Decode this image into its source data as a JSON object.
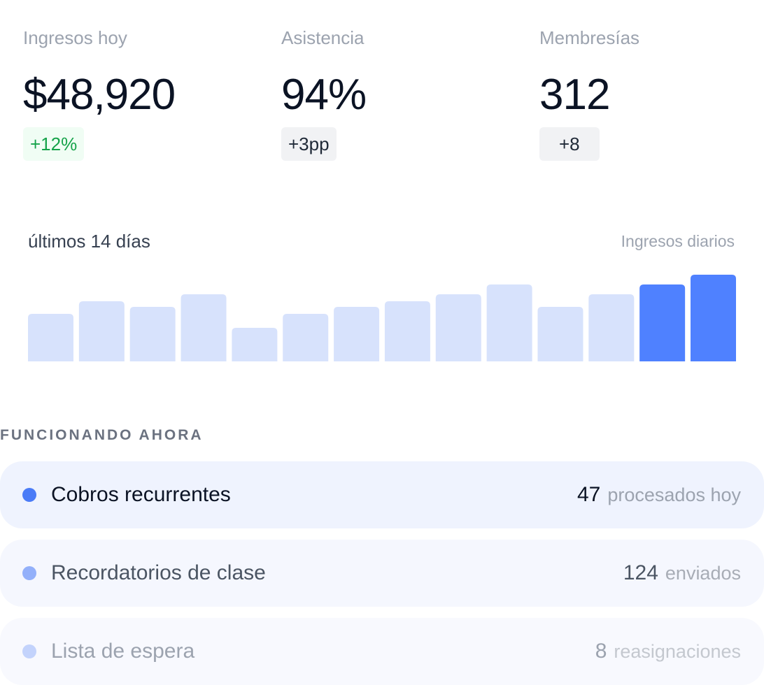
{
  "kpis": [
    {
      "label": "Ingresos hoy",
      "value": "$48,920",
      "delta": "+12%",
      "delta_tone": "up"
    },
    {
      "label": "Asistencia",
      "value": "94%",
      "delta": "+3pp",
      "delta_tone": "neutral"
    },
    {
      "label": "Membresías",
      "value": "312",
      "delta": "+8",
      "delta_tone": "neutral"
    }
  ],
  "chart": {
    "title": "últimos 14 días",
    "subtitle": "Ingresos diarios"
  },
  "chart_data": {
    "type": "bar",
    "title": "últimos 14 días",
    "subtitle": "Ingresos diarios",
    "categories": [
      "",
      "",
      "",
      "",
      "",
      "",
      "",
      "",
      "",
      "",
      "",
      "",
      "",
      ""
    ],
    "values": [
      68,
      86,
      78,
      96,
      48,
      68,
      78,
      86,
      96,
      110,
      78,
      96,
      110,
      124
    ],
    "highlighted": [
      12,
      13
    ],
    "ylim": [
      0,
      124
    ],
    "colors": {
      "bar": "#d7e2fc",
      "highlight": "#4f81ff"
    }
  },
  "automations": {
    "section_title": "FUNCIONANDO AHORA",
    "items": [
      {
        "name": "Cobros recurrentes",
        "count": "47",
        "unit": "procesados hoy",
        "dot_color": "#4a7bf7",
        "name_color": "#0b1324",
        "count_color": "#0b1324",
        "unit_color": "#9ca3af"
      },
      {
        "name": "Recordatorios de clase",
        "count": "124",
        "unit": "enviados",
        "dot_color": "#93b0fa",
        "name_color": "#4b5563",
        "count_color": "#4b5563",
        "unit_color": "#a8adb6"
      },
      {
        "name": "Lista de espera",
        "count": "8",
        "unit": "reasignaciones",
        "dot_color": "#c3d3fc",
        "name_color": "#9ca3af",
        "count_color": "#9ca3af",
        "unit_color": "#c4c8cf"
      }
    ]
  }
}
